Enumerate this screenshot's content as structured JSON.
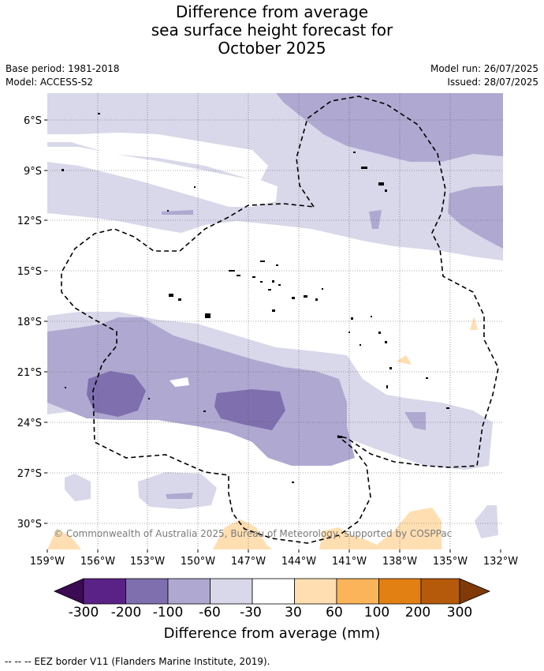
{
  "header": {
    "title_line1": "Difference from average",
    "title_line2": "sea surface height forecast for",
    "title_line3": "October 2025",
    "base_period": "Base period: 1981-2018",
    "model": "Model: ACCESS-S2",
    "model_run": "Model run: 26/07/2025",
    "issued": "Issued: 28/07/2025"
  },
  "map": {
    "copyright": "© Commonwealth of Australia 2025, Bureau of Meteorology, supported by COSPPac",
    "lat_labels": [
      "6°S",
      "9°S",
      "12°S",
      "15°S",
      "18°S",
      "21°S",
      "24°S",
      "27°S",
      "30°S"
    ],
    "lon_labels": [
      "159°W",
      "156°W",
      "153°W",
      "150°W",
      "147°W",
      "144°W",
      "141°W",
      "138°W",
      "135°W",
      "132°W"
    ],
    "land_color": "#ffffff",
    "border_style": "dashed"
  },
  "colorbar": {
    "title": "Difference from average (mm)",
    "tick_labels": [
      "-300",
      "-200",
      "-100",
      "-60",
      "-30",
      "30",
      "60",
      "100",
      "200",
      "300"
    ],
    "colors": {
      "under": "#3b0b53",
      "c_m300_m200": "#5a2286",
      "c_m200_m100": "#7f6fae",
      "c_m100_m60": "#afa9d1",
      "c_m60_m30": "#d8d8ea",
      "c_m30_30": "#ffffff",
      "c_30_60": "#ffdfb2",
      "c_60_100": "#fbb45a",
      "c_100_200": "#e28014",
      "c_200_300": "#b45a0a",
      "over": "#7f3a07"
    }
  },
  "footer": {
    "legend_text": "--  --  -- EEZ border V11 (Flanders Marine Institute, 2019)."
  }
}
